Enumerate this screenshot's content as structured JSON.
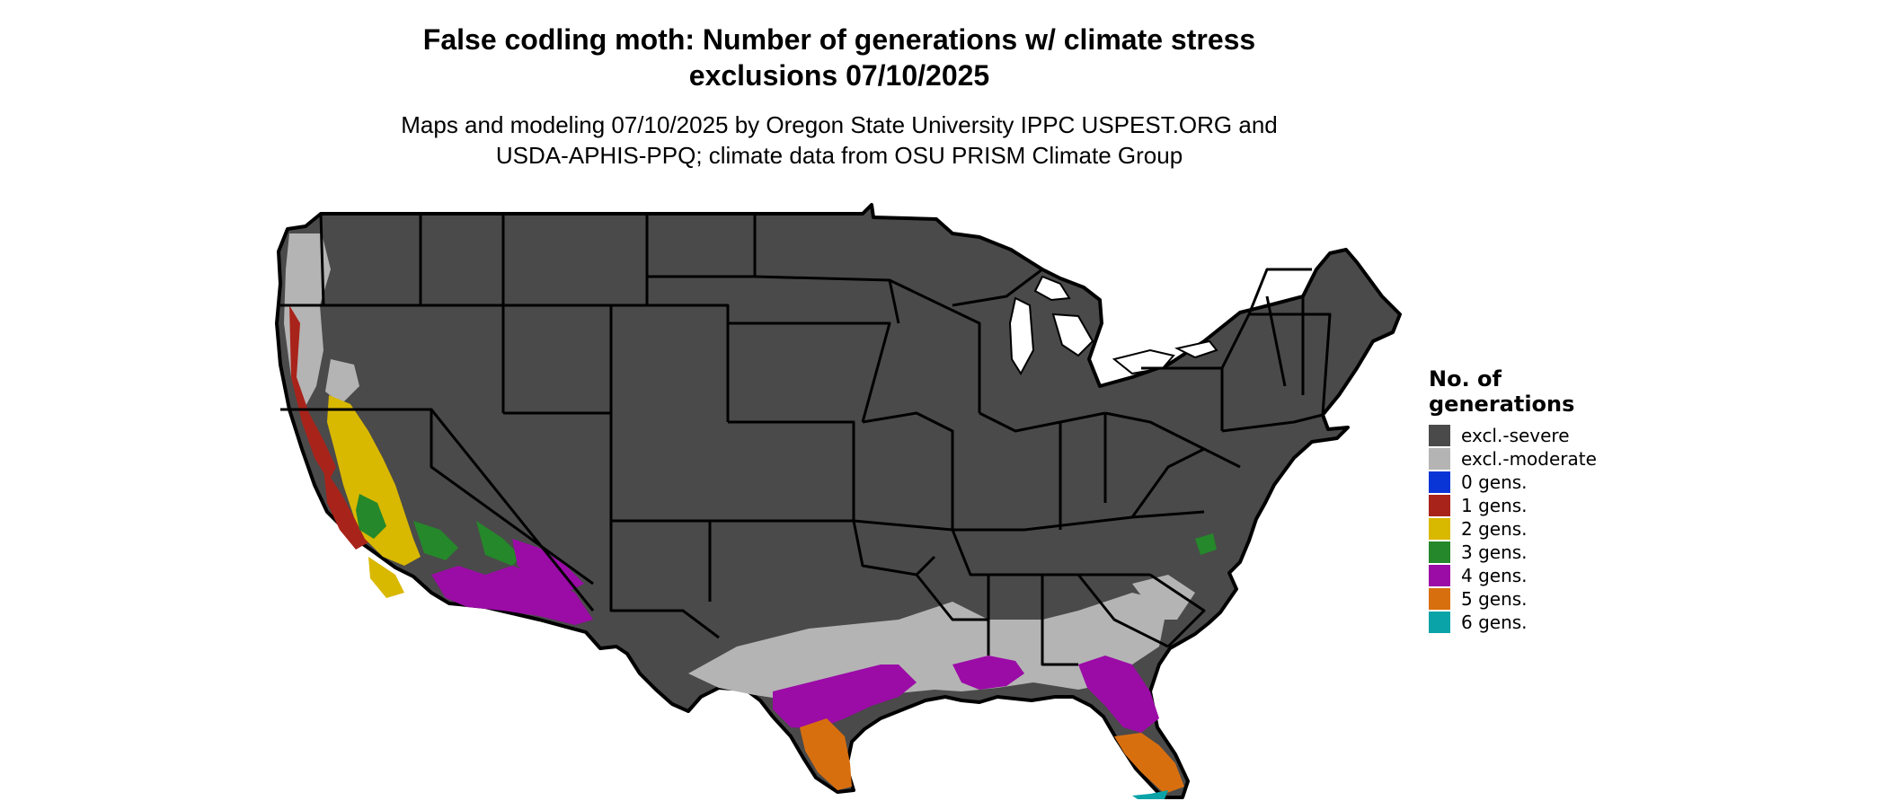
{
  "title_lines": [
    "False codling moth: Number of generations w/ climate stress",
    "exclusions 07/10/2025"
  ],
  "subtitle_lines": [
    "Maps and modeling 07/10/2025 by Oregon State University IPPC USPEST.ORG and",
    "USDA-APHIS-PPQ; climate data from OSU PRISM Climate Group"
  ],
  "legend": {
    "title_lines": [
      "No. of",
      "generations"
    ],
    "items": [
      {
        "label": "excl.-severe",
        "color": "#4a4a4a"
      },
      {
        "label": "excl.-moderate",
        "color": "#b4b4b4"
      },
      {
        "label": "0 gens.",
        "color": "#0a35d6"
      },
      {
        "label": "1 gens.",
        "color": "#a8231a"
      },
      {
        "label": "2 gens.",
        "color": "#d9b800"
      },
      {
        "label": "3 gens.",
        "color": "#25882a"
      },
      {
        "label": "4 gens.",
        "color": "#9b0ba6"
      },
      {
        "label": "5 gens.",
        "color": "#d86f0f"
      },
      {
        "label": "6 gens.",
        "color": "#0aa3a8"
      }
    ]
  },
  "colors": {
    "state_border": "#000000",
    "background": "#ffffff"
  }
}
